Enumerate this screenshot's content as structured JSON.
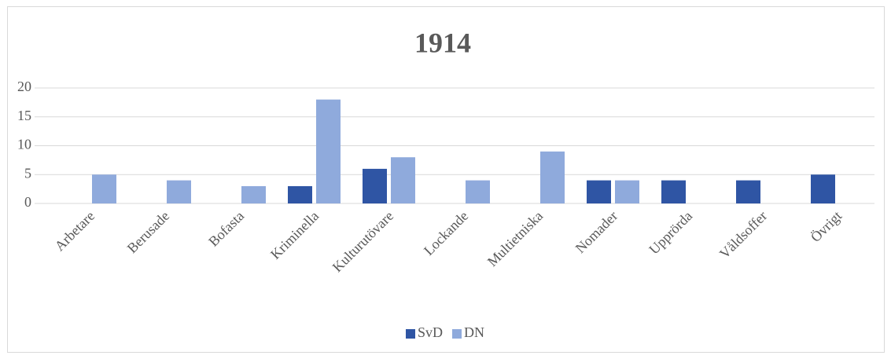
{
  "chart_data": {
    "type": "bar",
    "title": "1914",
    "categories": [
      "Arbetare",
      "Berusade",
      "Bofasta",
      "Kriminella",
      "Kulturutövare",
      "Lockande",
      "Multietniska",
      "Nomader",
      "Upprörda",
      "Våldsoffer",
      "Övrigt"
    ],
    "series": [
      {
        "name": "SvD",
        "color": "#2f55a4",
        "values": [
          0,
          0,
          0,
          3,
          6,
          0,
          0,
          4,
          4,
          4,
          5
        ]
      },
      {
        "name": "DN",
        "color": "#8faadc",
        "values": [
          5,
          4,
          3,
          18,
          8,
          4,
          9,
          4,
          0,
          0,
          0
        ]
      }
    ],
    "ylim": [
      0,
      20
    ],
    "yticks": [
      0,
      5,
      10,
      15,
      20
    ],
    "grid": true,
    "legend": "bottom"
  }
}
